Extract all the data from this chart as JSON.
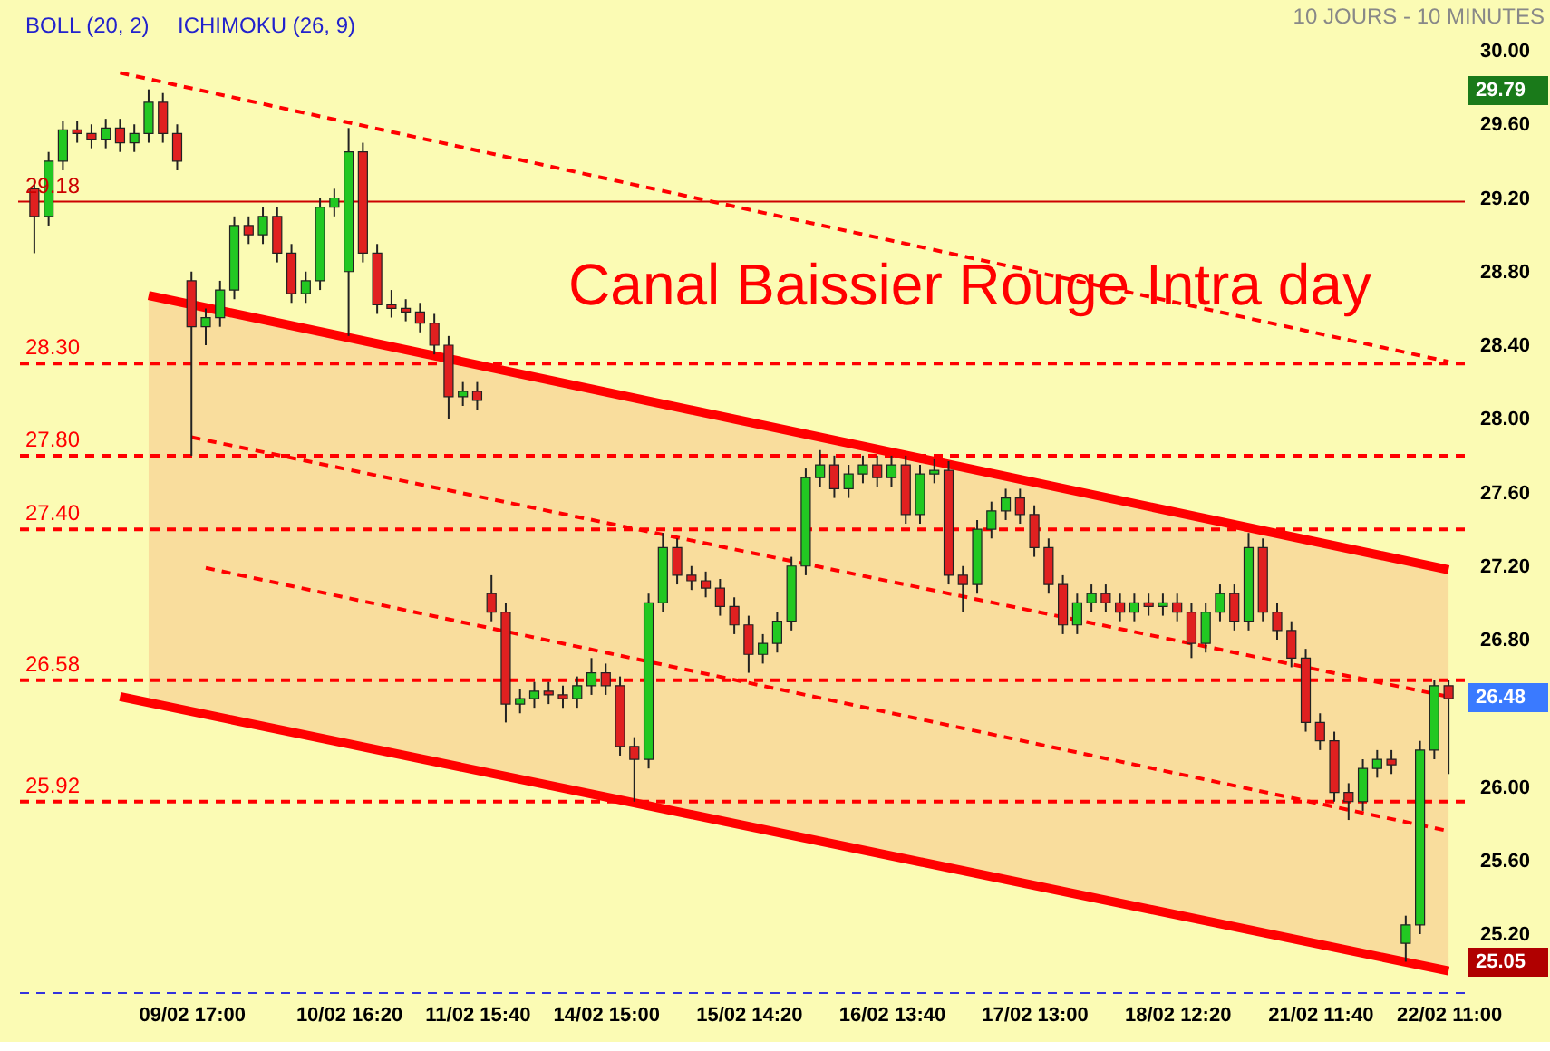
{
  "chart_data": {
    "type": "candlestick",
    "subtitle": "10 JOURS - 10 MINUTES",
    "annotations": [
      "BOLL (20, 2)",
      "ICHIMOKU (26, 9)",
      "Canal Baissier Rouge  Intra day",
      "29.79",
      "26.48",
      "25.05"
    ],
    "categories": [
      null,
      null,
      null,
      null,
      null,
      null,
      null,
      null,
      null,
      null,
      null,
      "09/02 17:00",
      null,
      null,
      null,
      null,
      null,
      null,
      null,
      null,
      null,
      null,
      "10/02 16:20",
      null,
      null,
      null,
      null,
      null,
      null,
      null,
      null,
      "11/02 15:40",
      null,
      null,
      null,
      null,
      null,
      null,
      null,
      null,
      "14/02 15:00",
      null,
      null,
      null,
      null,
      null,
      null,
      null,
      null,
      null,
      "15/02 14:20",
      null,
      null,
      null,
      null,
      null,
      null,
      null,
      null,
      null,
      "16/02 13:40",
      null,
      null,
      null,
      null,
      null,
      null,
      null,
      null,
      null,
      "17/02 13:00",
      null,
      null,
      null,
      null,
      null,
      null,
      null,
      null,
      null,
      "18/02 12:20",
      null,
      null,
      null,
      null,
      null,
      null,
      null,
      null,
      null,
      "21/02 11:40",
      null,
      null,
      null,
      null,
      null,
      null,
      null,
      null,
      "22/02 11:00"
    ],
    "ohlc": [
      [
        29.25,
        29.3,
        28.9,
        29.1
      ],
      [
        29.1,
        29.45,
        29.05,
        29.4
      ],
      [
        29.4,
        29.62,
        29.35,
        29.57
      ],
      [
        29.57,
        29.62,
        29.5,
        29.55
      ],
      [
        29.55,
        29.6,
        29.47,
        29.52
      ],
      [
        29.52,
        29.63,
        29.47,
        29.58
      ],
      [
        29.58,
        29.63,
        29.45,
        29.5
      ],
      [
        29.5,
        29.6,
        29.45,
        29.55
      ],
      [
        29.55,
        29.79,
        29.5,
        29.72
      ],
      [
        29.72,
        29.77,
        29.5,
        29.55
      ],
      [
        29.55,
        29.6,
        29.35,
        29.4
      ],
      [
        28.75,
        28.8,
        27.8,
        28.5
      ],
      [
        28.5,
        28.6,
        28.4,
        28.55
      ],
      [
        28.55,
        28.75,
        28.5,
        28.7
      ],
      [
        28.7,
        29.1,
        28.65,
        29.05
      ],
      [
        29.05,
        29.1,
        28.95,
        29.0
      ],
      [
        29.0,
        29.15,
        28.95,
        29.1
      ],
      [
        29.1,
        29.15,
        28.85,
        28.9
      ],
      [
        28.9,
        28.95,
        28.63,
        28.68
      ],
      [
        28.68,
        28.8,
        28.63,
        28.75
      ],
      [
        28.75,
        29.2,
        28.7,
        29.15
      ],
      [
        29.15,
        29.25,
        29.1,
        29.2
      ],
      [
        28.8,
        29.58,
        28.45,
        29.45
      ],
      [
        29.45,
        29.5,
        28.85,
        28.9
      ],
      [
        28.9,
        28.95,
        28.57,
        28.62
      ],
      [
        28.62,
        28.7,
        28.55,
        28.6
      ],
      [
        28.6,
        28.65,
        28.53,
        28.58
      ],
      [
        28.58,
        28.63,
        28.47,
        28.52
      ],
      [
        28.52,
        28.57,
        28.35,
        28.4
      ],
      [
        28.4,
        28.45,
        28.0,
        28.12
      ],
      [
        28.12,
        28.2,
        28.07,
        28.15
      ],
      [
        28.15,
        28.2,
        28.05,
        28.1
      ],
      [
        27.05,
        27.15,
        26.9,
        26.95
      ],
      [
        26.95,
        27.0,
        26.35,
        26.45
      ],
      [
        26.45,
        26.53,
        26.4,
        26.48
      ],
      [
        26.48,
        26.57,
        26.43,
        26.52
      ],
      [
        26.52,
        26.57,
        26.45,
        26.5
      ],
      [
        26.5,
        26.55,
        26.43,
        26.48
      ],
      [
        26.48,
        26.6,
        26.43,
        26.55
      ],
      [
        26.55,
        26.7,
        26.5,
        26.62
      ],
      [
        26.62,
        26.67,
        26.5,
        26.55
      ],
      [
        26.55,
        26.6,
        26.17,
        26.22
      ],
      [
        26.22,
        26.27,
        25.92,
        26.15
      ],
      [
        26.15,
        27.05,
        26.1,
        27.0
      ],
      [
        27.0,
        27.38,
        26.95,
        27.3
      ],
      [
        27.3,
        27.35,
        27.1,
        27.15
      ],
      [
        27.15,
        27.2,
        27.07,
        27.12
      ],
      [
        27.12,
        27.17,
        27.03,
        27.08
      ],
      [
        27.08,
        27.13,
        26.93,
        26.98
      ],
      [
        26.98,
        27.03,
        26.83,
        26.88
      ],
      [
        26.88,
        26.93,
        26.62,
        26.72
      ],
      [
        26.72,
        26.83,
        26.67,
        26.78
      ],
      [
        26.78,
        26.95,
        26.73,
        26.9
      ],
      [
        26.9,
        27.25,
        26.85,
        27.2
      ],
      [
        27.2,
        27.73,
        27.15,
        27.68
      ],
      [
        27.68,
        27.83,
        27.63,
        27.75
      ],
      [
        27.75,
        27.8,
        27.57,
        27.62
      ],
      [
        27.62,
        27.75,
        27.57,
        27.7
      ],
      [
        27.7,
        27.8,
        27.65,
        27.75
      ],
      [
        27.75,
        27.8,
        27.63,
        27.68
      ],
      [
        27.68,
        27.8,
        27.63,
        27.75
      ],
      [
        27.75,
        27.8,
        27.43,
        27.48
      ],
      [
        27.48,
        27.75,
        27.43,
        27.7
      ],
      [
        27.7,
        27.78,
        27.65,
        27.72
      ],
      [
        27.72,
        27.77,
        27.1,
        27.15
      ],
      [
        27.15,
        27.2,
        26.95,
        27.1
      ],
      [
        27.1,
        27.45,
        27.05,
        27.4
      ],
      [
        27.4,
        27.55,
        27.35,
        27.5
      ],
      [
        27.5,
        27.62,
        27.45,
        27.57
      ],
      [
        27.57,
        27.62,
        27.43,
        27.48
      ],
      [
        27.48,
        27.53,
        27.25,
        27.3
      ],
      [
        27.3,
        27.35,
        27.05,
        27.1
      ],
      [
        27.1,
        27.15,
        26.83,
        26.88
      ],
      [
        26.88,
        27.05,
        26.83,
        27.0
      ],
      [
        27.0,
        27.1,
        26.95,
        27.05
      ],
      [
        27.05,
        27.1,
        26.95,
        27.0
      ],
      [
        27.0,
        27.05,
        26.9,
        26.95
      ],
      [
        26.95,
        27.05,
        26.9,
        27.0
      ],
      [
        27.0,
        27.05,
        26.93,
        26.98
      ],
      [
        26.98,
        27.05,
        26.93,
        27.0
      ],
      [
        27.0,
        27.05,
        26.9,
        26.95
      ],
      [
        26.95,
        27.0,
        26.7,
        26.78
      ],
      [
        26.78,
        27.0,
        26.73,
        26.95
      ],
      [
        26.95,
        27.1,
        26.9,
        27.05
      ],
      [
        27.05,
        27.1,
        26.85,
        26.9
      ],
      [
        26.9,
        27.38,
        26.85,
        27.3
      ],
      [
        27.3,
        27.35,
        26.9,
        26.95
      ],
      [
        26.95,
        27.0,
        26.8,
        26.85
      ],
      [
        26.85,
        26.9,
        26.65,
        26.7
      ],
      [
        26.7,
        26.75,
        26.3,
        26.35
      ],
      [
        26.35,
        26.4,
        26.2,
        26.25
      ],
      [
        26.25,
        26.3,
        25.92,
        25.97
      ],
      [
        25.97,
        26.02,
        25.82,
        25.92
      ],
      [
        25.92,
        26.15,
        25.87,
        26.1
      ],
      [
        26.1,
        26.2,
        26.05,
        26.15
      ],
      [
        26.15,
        26.2,
        26.07,
        26.12
      ],
      [
        25.15,
        25.3,
        25.05,
        25.25
      ],
      [
        25.25,
        26.25,
        25.2,
        26.2
      ],
      [
        26.2,
        26.58,
        26.15,
        26.55
      ],
      [
        26.55,
        26.58,
        26.07,
        26.48
      ]
    ],
    "series": [
      {
        "type": "line",
        "color": "#ff0000",
        "line_style": "solid",
        "values": [
          null,
          null,
          null,
          null,
          null,
          null,
          null,
          null,
          28.67,
          null,
          null,
          null,
          null,
          null,
          null,
          null,
          null,
          null,
          null,
          null,
          null,
          null,
          null,
          null,
          null,
          null,
          null,
          null,
          null,
          null,
          null,
          null,
          null,
          null,
          null,
          null,
          null,
          null,
          null,
          null,
          null,
          null,
          null,
          null,
          null,
          null,
          null,
          null,
          null,
          null,
          null,
          null,
          null,
          null,
          null,
          null,
          null,
          null,
          null,
          null,
          null,
          null,
          null,
          null,
          null,
          null,
          null,
          null,
          null,
          null,
          null,
          null,
          null,
          null,
          null,
          null,
          null,
          null,
          null,
          null,
          null,
          null,
          null,
          null,
          null,
          null,
          null,
          null,
          null,
          null,
          null,
          null,
          null,
          null,
          null,
          null,
          null,
          null,
          null,
          27.18
        ],
        "upper": [
          null,
          null,
          null,
          null,
          null,
          null,
          null,
          null,
          28.67,
          null,
          null,
          null,
          null,
          null,
          null,
          null,
          null,
          null,
          null,
          null,
          null,
          null,
          null,
          null,
          null,
          null,
          null,
          null,
          null,
          null,
          null,
          null,
          null,
          null,
          null,
          null,
          null,
          null,
          null,
          null,
          null,
          null,
          null,
          null,
          null,
          null,
          null,
          null,
          null,
          null,
          null,
          null,
          null,
          null,
          null,
          null,
          null,
          null,
          null,
          null,
          null,
          null,
          null,
          null,
          null,
          null,
          null,
          null,
          null,
          null,
          null,
          null,
          null,
          null,
          null,
          null,
          null,
          null,
          null,
          null,
          null,
          null,
          null,
          null,
          null,
          null,
          null,
          null,
          null,
          null,
          null,
          null,
          null,
          null,
          null,
          null,
          null,
          null,
          null,
          27.18
        ],
        "lower": [
          null,
          null,
          null,
          null,
          null,
          null,
          null,
          null,
          26.47,
          null,
          null,
          null,
          null,
          null,
          null,
          null,
          null,
          null,
          null,
          null,
          null,
          null,
          null,
          null,
          null,
          null,
          null,
          null,
          null,
          null,
          null,
          null,
          null,
          null,
          null,
          null,
          null,
          null,
          null,
          null,
          null,
          null,
          null,
          null,
          null,
          null,
          null,
          null,
          null,
          null,
          null,
          null,
          null,
          null,
          null,
          null,
          null,
          null,
          null,
          null,
          null,
          null,
          null,
          null,
          null,
          null,
          null,
          null,
          null,
          null,
          null,
          null,
          null,
          null,
          null,
          null,
          null,
          null,
          null,
          null,
          null,
          null,
          null,
          null,
          null,
          null,
          null,
          null,
          null,
          null,
          null,
          null,
          null,
          null,
          null,
          null,
          null,
          null,
          null,
          25.0
        ]
      },
      {
        "type": "line",
        "color": "#ff0000",
        "line_style": "solid",
        "values": [
          null,
          null,
          null,
          null,
          null,
          null,
          26.49,
          null,
          null,
          null,
          null,
          null,
          null,
          null,
          null,
          null,
          null,
          null,
          null,
          null,
          null,
          null,
          null,
          null,
          null,
          null,
          null,
          null,
          null,
          null,
          null,
          null,
          null,
          null,
          null,
          null,
          null,
          null,
          null,
          null,
          null,
          null,
          null,
          null,
          null,
          null,
          null,
          null,
          null,
          null,
          null,
          null,
          null,
          null,
          null,
          null,
          null,
          null,
          null,
          null,
          null,
          null,
          null,
          null,
          null,
          null,
          null,
          null,
          null,
          null,
          null,
          null,
          null,
          null,
          null,
          null,
          null,
          null,
          null,
          null,
          null,
          null,
          null,
          null,
          null,
          null,
          null,
          null,
          null,
          null,
          null,
          null,
          null,
          null,
          null,
          null,
          null,
          null,
          null,
          25.0
        ]
      },
      {
        "type": "line",
        "color": "#ff0000",
        "line_style": "dashed",
        "values": [
          null,
          null,
          null,
          null,
          null,
          null,
          29.88,
          null,
          null,
          null,
          null,
          null,
          null,
          null,
          null,
          null,
          null,
          null,
          null,
          null,
          null,
          null,
          null,
          null,
          null,
          null,
          null,
          null,
          null,
          null,
          null,
          null,
          null,
          null,
          null,
          null,
          null,
          null,
          null,
          null,
          null,
          null,
          null,
          null,
          null,
          null,
          null,
          null,
          null,
          null,
          null,
          null,
          null,
          null,
          null,
          null,
          null,
          null,
          null,
          null,
          null,
          null,
          null,
          null,
          null,
          null,
          null,
          null,
          null,
          null,
          null,
          null,
          null,
          null,
          null,
          null,
          null,
          null,
          null,
          null,
          null,
          null,
          null,
          null,
          null,
          null,
          null,
          null,
          null,
          null,
          null,
          null,
          null,
          null,
          null,
          null,
          null,
          null,
          null,
          28.31
        ]
      },
      {
        "type": "line",
        "color": "#ff0000",
        "line_style": "dashed",
        "values": [
          null,
          null,
          null,
          null,
          null,
          null,
          null,
          null,
          null,
          null,
          null,
          27.9,
          null,
          null,
          null,
          null,
          null,
          null,
          null,
          null,
          null,
          null,
          null,
          null,
          null,
          null,
          null,
          null,
          null,
          null,
          null,
          null,
          null,
          null,
          null,
          null,
          null,
          null,
          null,
          null,
          null,
          null,
          null,
          null,
          null,
          null,
          null,
          null,
          null,
          null,
          null,
          null,
          null,
          null,
          null,
          null,
          null,
          null,
          null,
          null,
          null,
          null,
          null,
          null,
          null,
          null,
          null,
          null,
          null,
          null,
          null,
          null,
          null,
          null,
          null,
          null,
          null,
          null,
          null,
          null,
          null,
          null,
          null,
          null,
          null,
          null,
          null,
          null,
          null,
          null,
          null,
          null,
          null,
          null,
          null,
          null,
          null,
          null,
          null,
          26.49
        ]
      },
      {
        "type": "line",
        "color": "#ff0000",
        "line_style": "dashed",
        "values": [
          null,
          null,
          null,
          null,
          null,
          null,
          null,
          null,
          null,
          null,
          null,
          null,
          27.19,
          null,
          null,
          null,
          null,
          null,
          null,
          null,
          null,
          null,
          null,
          null,
          null,
          null,
          null,
          null,
          null,
          null,
          null,
          null,
          null,
          null,
          null,
          null,
          null,
          null,
          null,
          null,
          null,
          null,
          null,
          null,
          null,
          null,
          null,
          null,
          null,
          null,
          null,
          null,
          null,
          null,
          null,
          null,
          null,
          null,
          null,
          null,
          null,
          null,
          null,
          null,
          null,
          null,
          null,
          null,
          null,
          null,
          null,
          null,
          null,
          null,
          null,
          null,
          null,
          null,
          null,
          null,
          null,
          null,
          null,
          null,
          null,
          null,
          null,
          null,
          null,
          null,
          null,
          null,
          null,
          null,
          null,
          null,
          null,
          null,
          null,
          25.76
        ]
      }
    ],
    "ref_lines": [
      {
        "axis": "y",
        "value": 29.18,
        "label": "29.18",
        "color": "#cc0000",
        "line_style": "solid"
      },
      {
        "axis": "y",
        "value": 28.3,
        "label": "28.30",
        "color": "#ff0000",
        "line_style": "dashed"
      },
      {
        "axis": "y",
        "value": 27.8,
        "label": "27.80",
        "color": "#ff0000",
        "line_style": "dashed"
      },
      {
        "axis": "y",
        "value": 27.4,
        "label": "27.40",
        "color": "#ff0000",
        "line_style": "dashed"
      },
      {
        "axis": "y",
        "value": 26.58,
        "label": "26.58",
        "color": "#ff0000",
        "line_style": "dashed"
      },
      {
        "axis": "y",
        "value": 25.92,
        "label": "25.92",
        "color": "#ff0000",
        "line_style": "dashed"
      }
    ],
    "ylim": [
      24.88,
      30.0
    ],
    "yticks": [
      {
        "value": 25.2,
        "label": "25.20"
      },
      {
        "value": 25.6,
        "label": "25.60"
      },
      {
        "value": 26.0,
        "label": "26.00"
      },
      {
        "value": 26.8,
        "label": "26.80"
      },
      {
        "value": 27.2,
        "label": "27.20"
      },
      {
        "value": 27.6,
        "label": "27.60"
      },
      {
        "value": 28.0,
        "label": "28.00"
      },
      {
        "value": 28.4,
        "label": "28.40"
      },
      {
        "value": 28.8,
        "label": "28.80"
      },
      {
        "value": 29.2,
        "label": "29.20"
      },
      {
        "value": 29.6,
        "label": "29.60"
      },
      {
        "value": 30.0,
        "label": "30.00"
      }
    ],
    "grid": false
  }
}
